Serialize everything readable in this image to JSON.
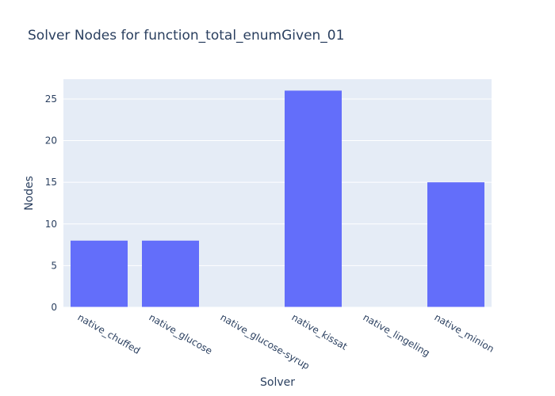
{
  "chart_data": {
    "type": "bar",
    "title": "Solver Nodes for function_total_enumGiven_01",
    "xlabel": "Solver",
    "ylabel": "Nodes",
    "categories": [
      "native_chuffed",
      "native_glucose",
      "native_glucose-syrup",
      "native_kissat",
      "native_lingeling",
      "native_minion"
    ],
    "values": [
      8,
      8,
      0,
      26,
      0,
      15
    ],
    "ylim": [
      0,
      27.37
    ],
    "yticks": [
      0,
      5,
      10,
      15,
      20,
      25
    ],
    "grid": true,
    "legend": "none",
    "colors": {
      "bar": "#636efa",
      "plot_bg": "#e5ecf6",
      "grid": "#ffffff",
      "text": "#2a3f5f"
    }
  }
}
